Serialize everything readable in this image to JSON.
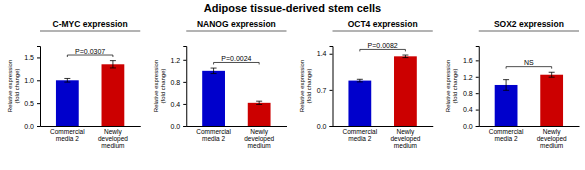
{
  "title": "Adipose tissue-derived stem cells",
  "chart_data": [
    {
      "type": "bar",
      "title": "C-MYC expression",
      "categories": [
        "Commercial\nmedia 2",
        "Newly\ndeveloped\nmedium"
      ],
      "values": [
        1.0,
        1.35
      ],
      "errors": [
        0.04,
        0.08
      ],
      "colors": [
        "#0000cc",
        "#cc0000"
      ],
      "ylim": [
        0,
        1.75
      ],
      "yticks": [
        {
          "value": 0.0,
          "label": "0.0"
        },
        0.5,
        {
          "value": 1.0,
          "label": "1.0"
        },
        1.5
      ],
      "ylabel": "Relative expression\n(fold change)",
      "annotation": "P=0.0307"
    },
    {
      "type": "bar",
      "title": "NANOG expression",
      "categories": [
        "Commercial\nmedia 2",
        "Newly\ndeveloped\nmedium"
      ],
      "values": [
        1.0,
        0.42
      ],
      "errors": [
        0.05,
        0.03
      ],
      "colors": [
        "#0000cc",
        "#cc0000"
      ],
      "ylim": [
        0,
        1.45
      ],
      "yticks": [
        {
          "value": 0.0,
          "label": "0.0"
        },
        0.4,
        0.8,
        1.2
      ],
      "ylabel": "Relative expression\n(fold change)",
      "annotation": "P=0.0024"
    },
    {
      "type": "bar",
      "title": "OCT4 expression",
      "categories": [
        "Commercial\nmedia 2",
        "Newly\ndeveloped\nmedium"
      ],
      "values": [
        0.88,
        1.35
      ],
      "errors": [
        0.025,
        0.025
      ],
      "colors": [
        "#0000cc",
        "#cc0000"
      ],
      "ylim": [
        0.0,
        1.55
      ],
      "yticks": [
        {
          "value": 0.0,
          "label": "0.0"
        },
        0.7,
        1.4
      ],
      "ylabel": "Relative expression\n(fold change)",
      "annotation": "P=0.0082"
    },
    {
      "type": "bar",
      "title": "SOX2 expression",
      "categories": [
        "Commercial\nmedia 2",
        "Newly\ndeveloped\nmedium"
      ],
      "values": [
        1.0,
        1.25
      ],
      "errors": [
        0.13,
        0.06
      ],
      "colors": [
        "#0000cc",
        "#cc0000"
      ],
      "ylim": [
        0,
        1.95
      ],
      "yticks": [
        {
          "value": 0.0,
          "label": "0.0"
        },
        0.4,
        0.8,
        1.2,
        1.6
      ],
      "ylabel": "Relative expression\n(fold change)",
      "annotation": "NS"
    }
  ]
}
